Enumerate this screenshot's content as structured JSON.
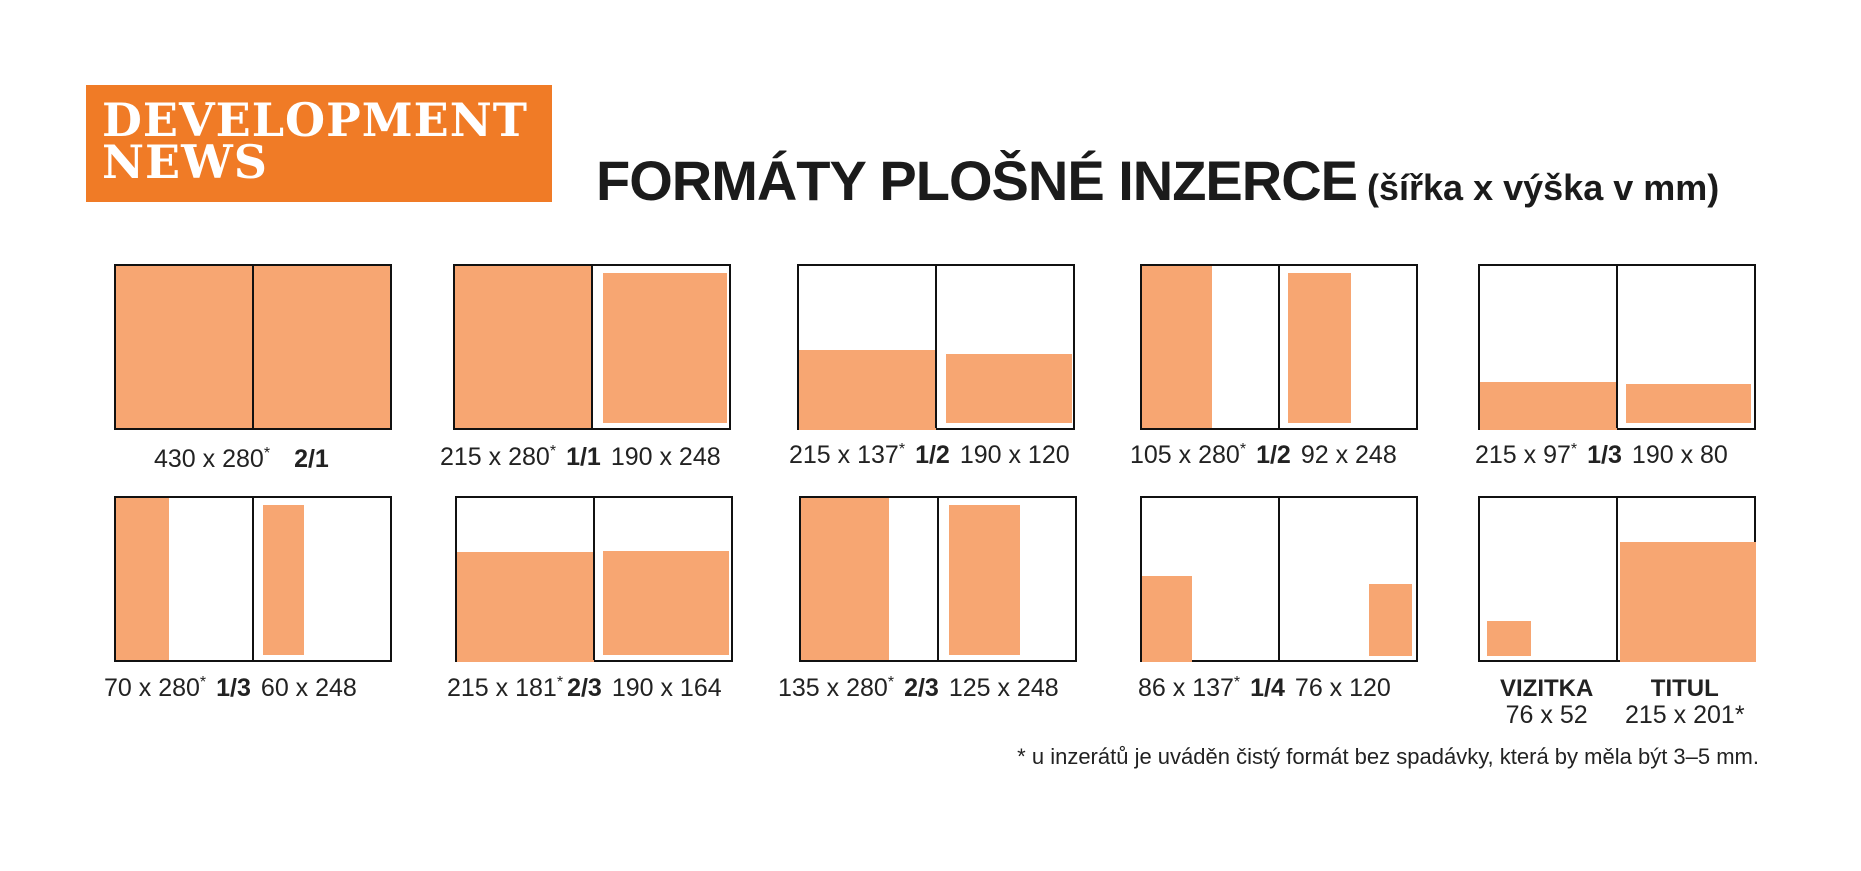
{
  "logo": "DEVELOPMENT\nNEWS",
  "headline": {
    "main": "FORMÁTY PLOŠNÉ INZERCE",
    "sub": "(šířka x výška v mm)"
  },
  "formats": [
    {
      "left": "430 x 280",
      "fraction": "2/1",
      "right": ""
    },
    {
      "left": "215 x 280",
      "fraction": "1/1",
      "right": "190 x 248"
    },
    {
      "left": "215 x 137",
      "fraction": "1/2",
      "right": "190 x 120"
    },
    {
      "left": "105 x 280",
      "fraction": "1/2",
      "right": "92 x 248"
    },
    {
      "left": "215 x 97",
      "fraction": "1/3",
      "right": "190 x 80"
    },
    {
      "left": "70 x 280",
      "fraction": "1/3",
      "right": "60 x 248"
    },
    {
      "left": "215 x  181",
      "fraction": "2/3",
      "right": "190 x 164"
    },
    {
      "left": "135 x 280",
      "fraction": "2/3",
      "right": "125 x 248"
    },
    {
      "left": "86 x 137",
      "fraction": "1/4",
      "right": "76 x 120"
    }
  ],
  "asterisk": "*",
  "specials": {
    "vizitka": {
      "name": "VIZITKA",
      "size": "76 x 52"
    },
    "titul": {
      "name": "TITUL",
      "size": "215 x 201*"
    }
  },
  "footnote": "* u inzerátů je uváděn čistý formát bez spadávky, která by měla být 3–5 mm.",
  "colors": {
    "accent": "#f07b26",
    "ad_fill": "#f7a672"
  }
}
